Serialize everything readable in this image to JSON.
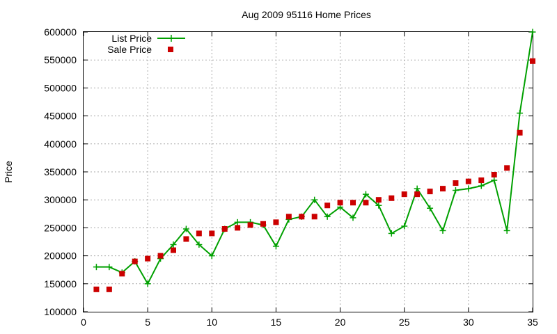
{
  "chart_data": {
    "type": "line",
    "title": "Aug 2009 95116 Home Prices",
    "xlabel": "",
    "ylabel": "Price",
    "xlim": [
      0,
      35
    ],
    "ylim": [
      100000,
      600000
    ],
    "xticks": [
      0,
      5,
      10,
      15,
      20,
      25,
      30,
      35
    ],
    "yticks": [
      100000,
      150000,
      200000,
      250000,
      300000,
      350000,
      400000,
      450000,
      500000,
      550000,
      600000
    ],
    "grid": true,
    "legend_position": "top-left",
    "x": [
      1,
      2,
      3,
      4,
      5,
      6,
      7,
      8,
      9,
      10,
      11,
      12,
      13,
      14,
      15,
      16,
      17,
      18,
      19,
      20,
      21,
      22,
      23,
      24,
      25,
      26,
      27,
      28,
      29,
      30,
      31,
      32,
      33,
      34,
      35
    ],
    "series": [
      {
        "name": "List Price",
        "style": "lines+crosses",
        "color": "#00a000",
        "values": [
          180000,
          180000,
          170000,
          190000,
          150000,
          195000,
          220000,
          248000,
          220000,
          200000,
          248000,
          260000,
          260000,
          255000,
          217000,
          265000,
          270000,
          300000,
          270000,
          287000,
          268000,
          310000,
          290000,
          240000,
          253000,
          320000,
          285000,
          245000,
          317000,
          320000,
          325000,
          335000,
          245000,
          455000,
          600000
        ]
      },
      {
        "name": "Sale Price",
        "style": "squares",
        "color": "#cc0000",
        "values": [
          140000,
          140000,
          168000,
          190000,
          195000,
          200000,
          210000,
          230000,
          240000,
          240000,
          248000,
          250000,
          255000,
          257000,
          260000,
          270000,
          270000,
          270000,
          290000,
          295000,
          295000,
          295000,
          300000,
          303000,
          310000,
          310000,
          315000,
          320000,
          330000,
          333000,
          335000,
          345000,
          357000,
          420000,
          548000
        ]
      }
    ]
  }
}
